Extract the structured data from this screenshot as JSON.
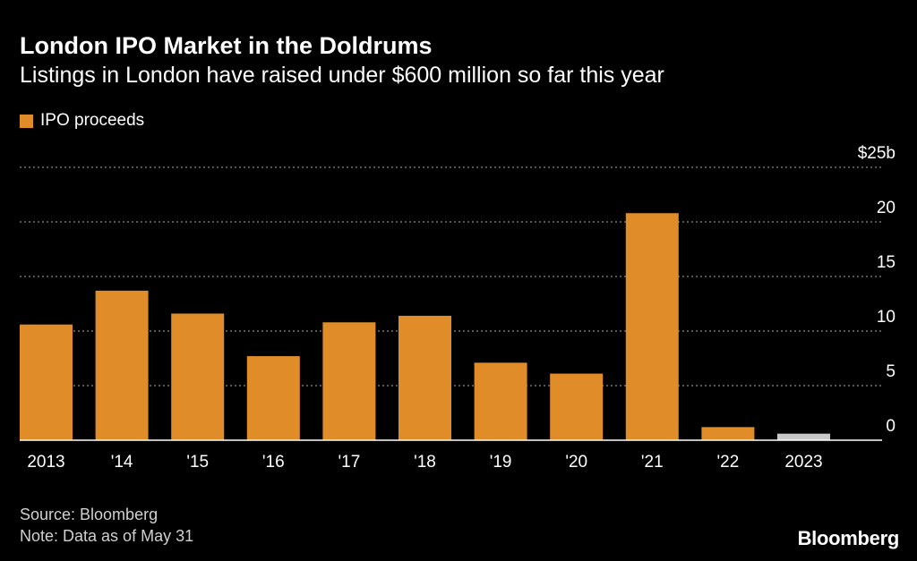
{
  "header": {
    "title": "London IPO Market in the Doldrums",
    "subtitle": "Listings in London have raised under $600 million so far this year"
  },
  "legend": {
    "label": "IPO proceeds"
  },
  "colors": {
    "bar": "#E08C28",
    "bar_partial": "#C8C8C8",
    "grid": "#8a8a8a",
    "background": "#000000"
  },
  "chart_data": {
    "type": "bar",
    "title": "London IPO Market in the Doldrums",
    "subtitle": "Listings in London have raised under $600 million so far this year",
    "xlabel": "",
    "ylabel": "",
    "ylim": [
      0,
      25
    ],
    "yticks": [
      0,
      5,
      10,
      15,
      20,
      25
    ],
    "ytick_labels": [
      "0",
      "5",
      "10",
      "15",
      "20",
      "$25b"
    ],
    "grid": true,
    "legend_position": "top-left",
    "categories": [
      "2013",
      "'14",
      "'15",
      "'16",
      "'17",
      "'18",
      "'19",
      "'20",
      "'21",
      "'22",
      "2023"
    ],
    "series": [
      {
        "name": "IPO proceeds",
        "values": [
          10.6,
          13.7,
          11.6,
          7.7,
          10.8,
          11.4,
          7.1,
          6.1,
          20.8,
          1.2,
          0.6
        ]
      }
    ],
    "highlight_last_as_partial": true
  },
  "footer": {
    "source": "Source: Bloomberg",
    "note": "Note: Data as of May 31",
    "brand": "Bloomberg"
  }
}
